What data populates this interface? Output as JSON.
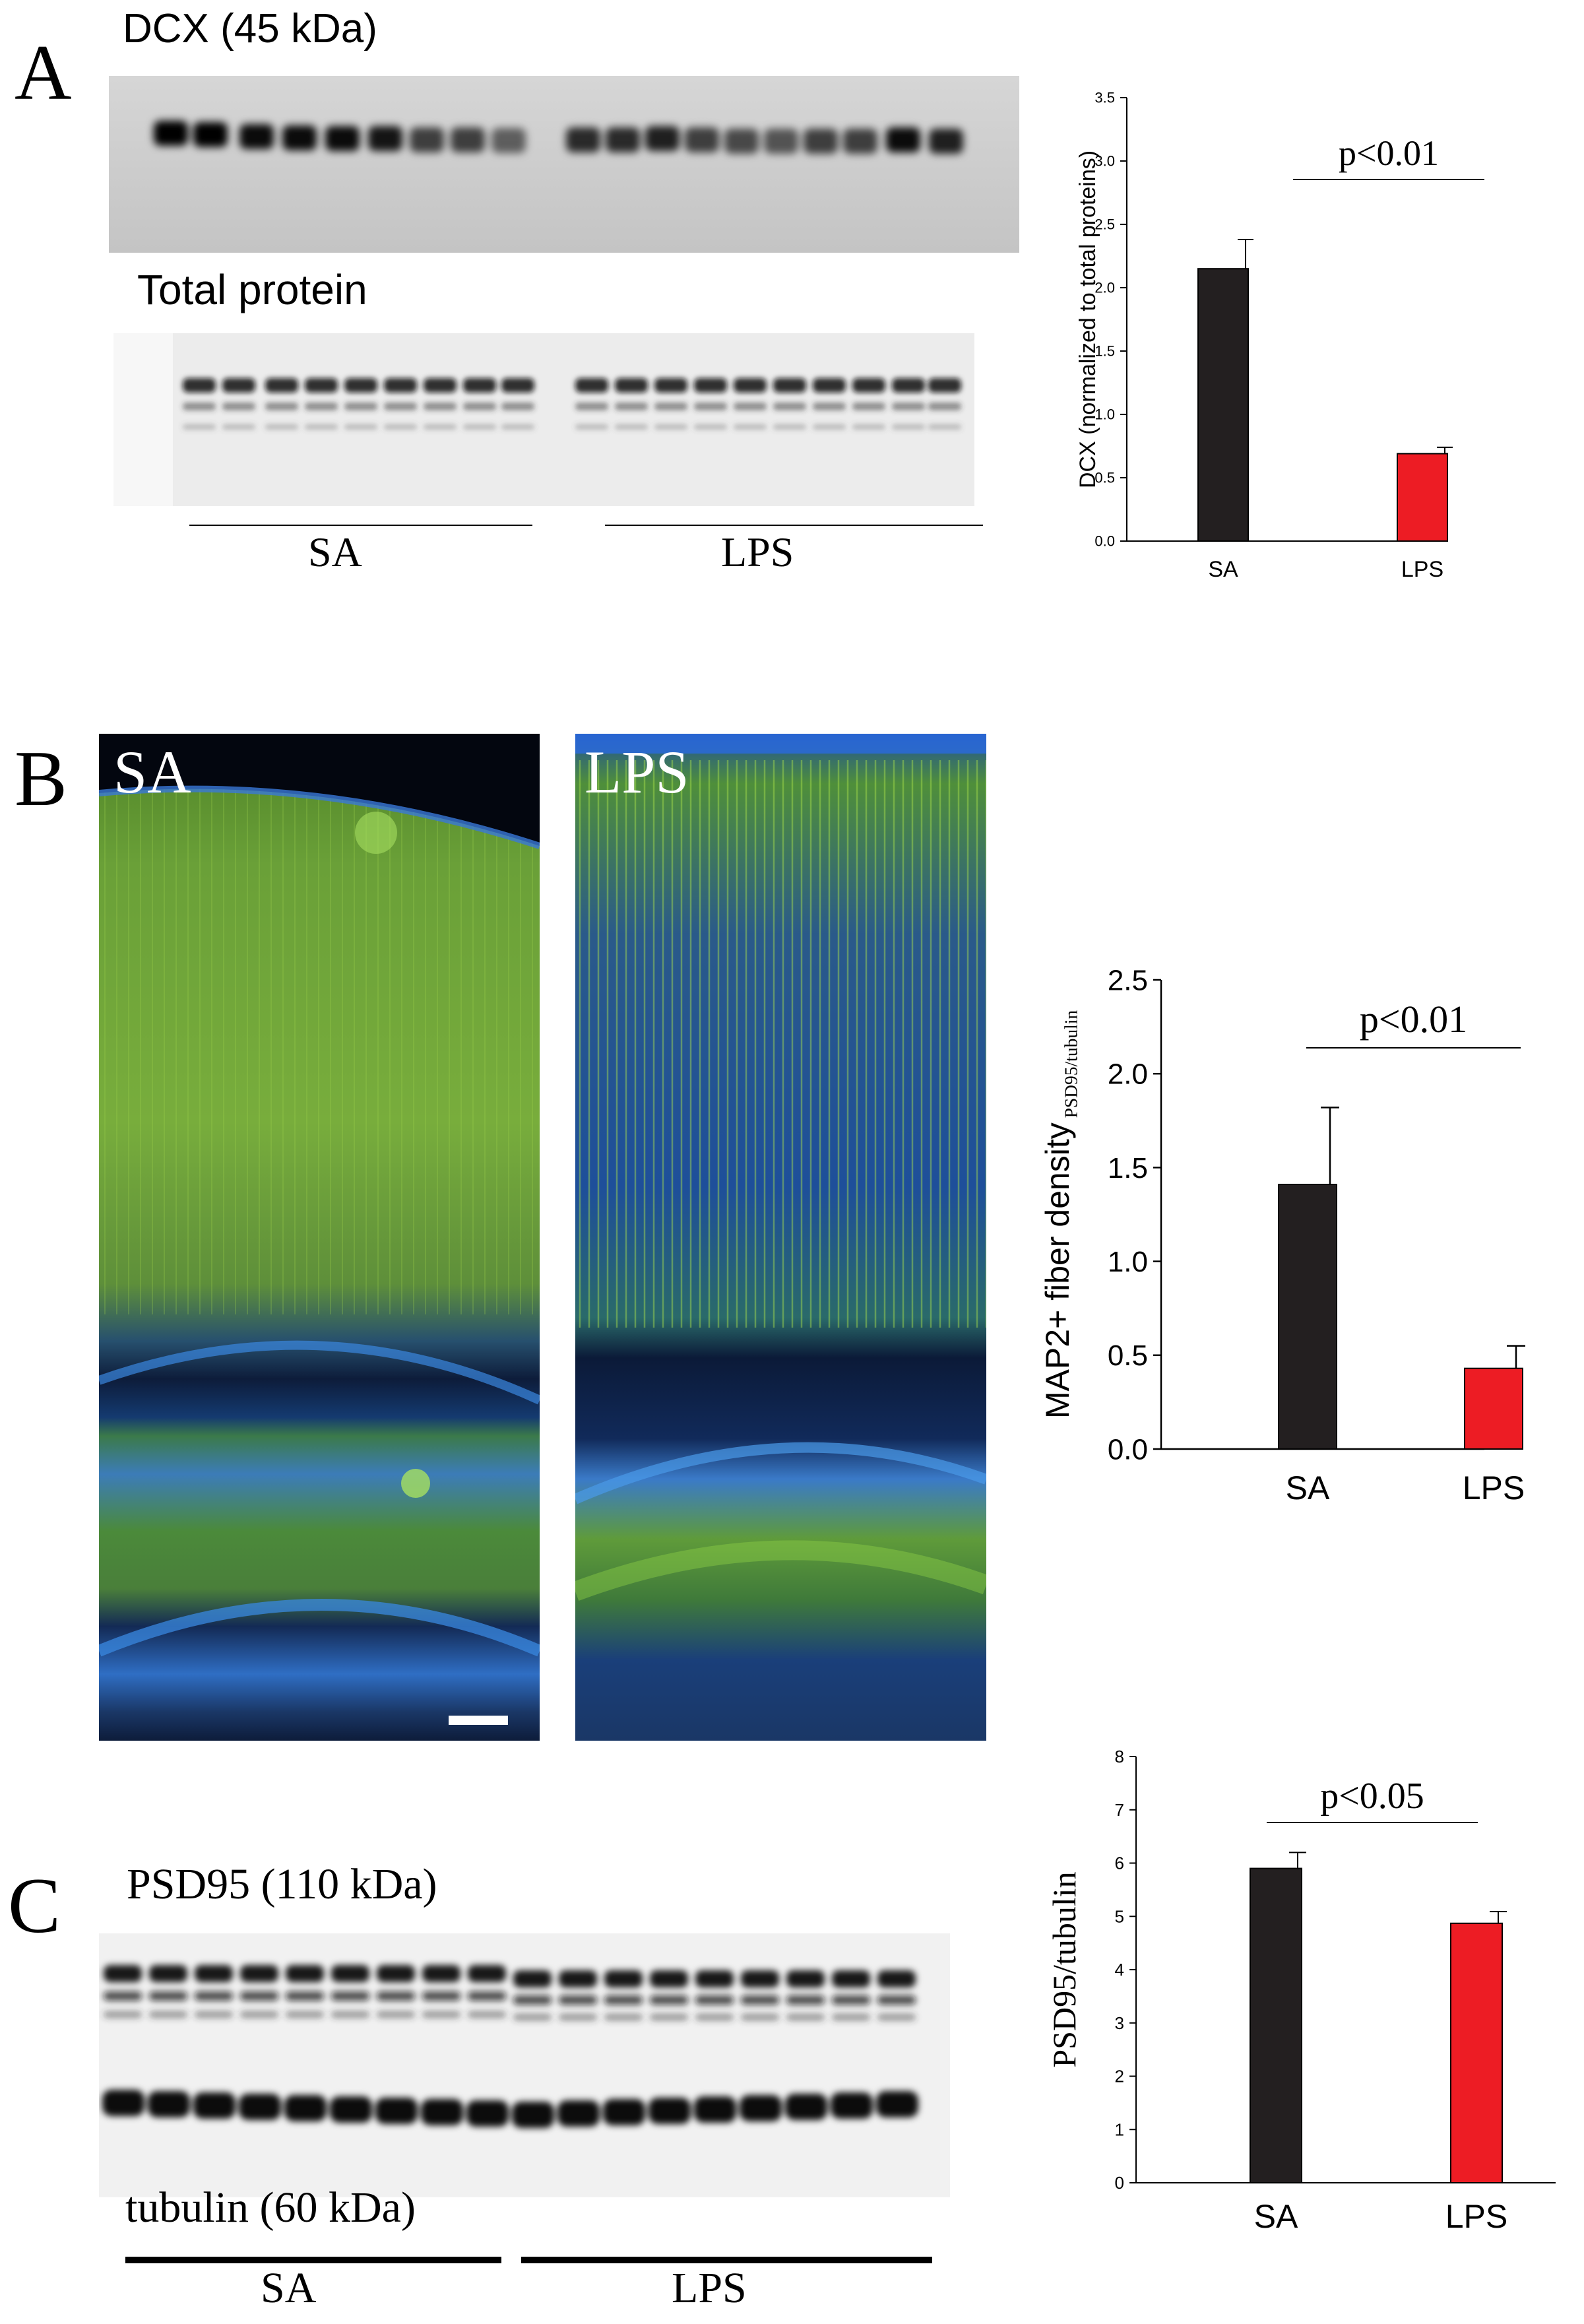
{
  "panels": {
    "a": {
      "letter": "A",
      "blot_top_label": "DCX (45 kDa)",
      "blot_bottom_label": "Total protein",
      "group_left": "SA",
      "group_right": "LPS"
    },
    "b": {
      "letter": "B",
      "image_left_label": "SA",
      "image_right_label": "LPS"
    },
    "c": {
      "letter": "C",
      "blot_top_label": "PSD95 (110 kDa)",
      "blot_bottom_label": "tubulin (60 kDa)",
      "group_left": "SA",
      "group_right": "LPS"
    }
  },
  "colors": {
    "sa_bar": "#231f20",
    "lps_bar": "#ed1c24",
    "microscopy_green": "#7cc23a",
    "microscopy_blue": "#1f5fb5"
  },
  "chart_data": [
    {
      "id": "chart-a",
      "type": "bar",
      "categories": [
        "SA",
        "LPS"
      ],
      "values": [
        2.15,
        0.69
      ],
      "errors": [
        0.23,
        0.05
      ],
      "ylabel": "DCX (normalized to total proteins)",
      "ylim": [
        0,
        3.5
      ],
      "yticks": [
        "0.0",
        "0.5",
        "1.0",
        "1.5",
        "2.0",
        "2.5",
        "3.0",
        "3.5"
      ],
      "annotation": "p<0.01",
      "grid": false
    },
    {
      "id": "chart-b",
      "type": "bar",
      "categories": [
        "SA",
        "LPS"
      ],
      "values": [
        1.41,
        0.43
      ],
      "errors": [
        0.41,
        0.12
      ],
      "ylabel": "MAP2+ fiber density",
      "ylabel_sub": "PSD95/tubulin",
      "ylim": [
        0,
        2.5
      ],
      "yticks": [
        "0.0",
        "0.5",
        "1.0",
        "1.5",
        "2.0",
        "2.5"
      ],
      "annotation": "p<0.01",
      "grid": false
    },
    {
      "id": "chart-c",
      "type": "bar",
      "categories": [
        "SA",
        "LPS"
      ],
      "values": [
        5.9,
        4.87
      ],
      "errors": [
        0.3,
        0.22
      ],
      "ylabel": "PSD95/tubulin",
      "ylim": [
        0,
        8
      ],
      "yticks": [
        "0",
        "1",
        "2",
        "3",
        "4",
        "5",
        "6",
        "7",
        "8"
      ],
      "annotation": "p<0.05",
      "grid": false
    }
  ]
}
